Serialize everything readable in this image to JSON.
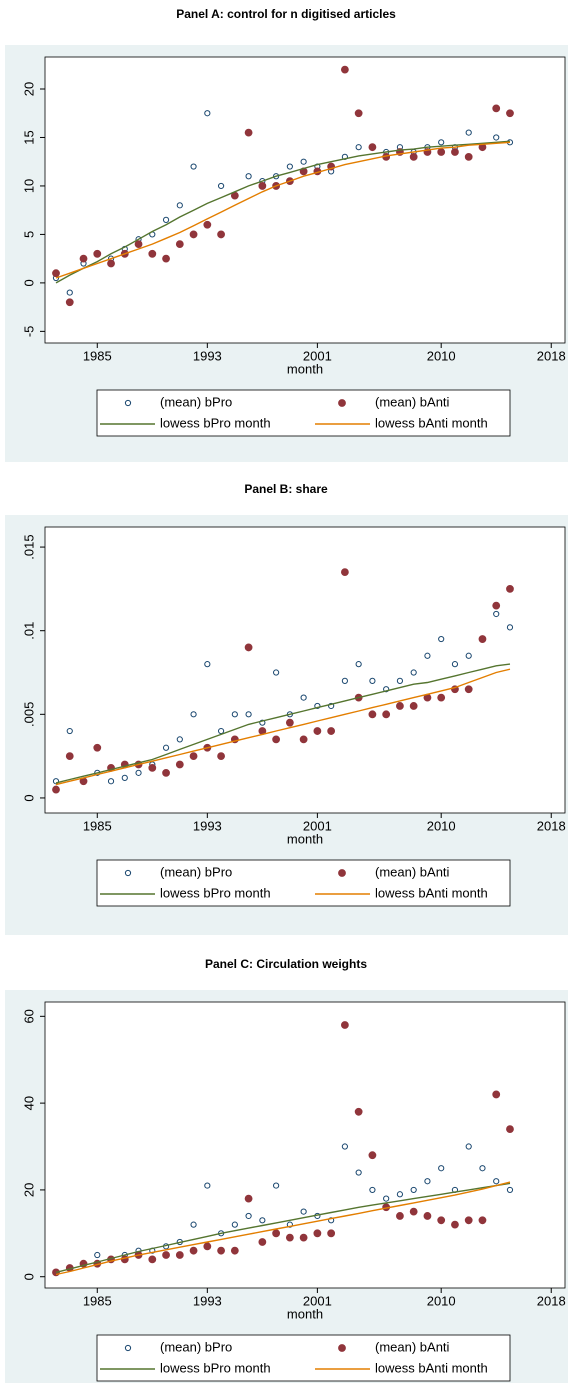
{
  "chart_data": [
    {
      "type": "scatter",
      "title": "Panel A: control for n digitised articles",
      "xlabel": "month",
      "x": [
        1982,
        1983,
        1984,
        1985,
        1986,
        1987,
        1988,
        1989,
        1990,
        1991,
        1992,
        1993,
        1994,
        1995,
        1996,
        1997,
        1998,
        1999,
        2000,
        2001,
        2002,
        2003,
        2004,
        2005,
        2006,
        2007,
        2008,
        2009,
        2010,
        2011,
        2012,
        2013,
        2014,
        2015
      ],
      "xlim": [
        1981.2,
        2019
      ],
      "xticks": [
        1985,
        1993,
        2001,
        2010,
        2018
      ],
      "ylim": [
        -6.2,
        23.3
      ],
      "yticks": [
        -5,
        0,
        5,
        10,
        15,
        20
      ],
      "series": [
        {
          "name": "(mean) bPro",
          "style": "hollow-circle",
          "color": "#1a476f",
          "values": [
            0.5,
            -1,
            2,
            3,
            2.5,
            3.5,
            4.5,
            5,
            6.5,
            8,
            12,
            17.5,
            10,
            9,
            11,
            10.5,
            11,
            12,
            12.5,
            12,
            11.5,
            13,
            14,
            14,
            13.5,
            14,
            13.5,
            14,
            14.5,
            14,
            15.5,
            14,
            15,
            14.5
          ]
        },
        {
          "name": "(mean) bAnti",
          "style": "filled-circle",
          "color": "#90353b",
          "values": [
            1,
            -2,
            2.5,
            3,
            2,
            3,
            4,
            3,
            2.5,
            4,
            5,
            6,
            5,
            9,
            15.5,
            10,
            10,
            10.5,
            11.5,
            11.5,
            12,
            22,
            17.5,
            14,
            13,
            13.5,
            13,
            13.5,
            13.5,
            13.5,
            13,
            14,
            18,
            17.5
          ]
        },
        {
          "name": "lowess bPro month",
          "style": "line",
          "color": "#55752f",
          "values": [
            0,
            0.8,
            1.5,
            2.2,
            3,
            3.7,
            4.5,
            5.3,
            6,
            6.8,
            7.5,
            8.2,
            8.8,
            9.4,
            10,
            10.5,
            11,
            11.4,
            11.8,
            12.2,
            12.5,
            12.8,
            13.1,
            13.3,
            13.5,
            13.7,
            13.8,
            14,
            14.1,
            14.2,
            14.3,
            14.4,
            14.5,
            14.6
          ]
        },
        {
          "name": "lowess bAnti month",
          "style": "line",
          "color": "#e37e00",
          "values": [
            0.5,
            1,
            1.5,
            2,
            2.5,
            3,
            3.5,
            4,
            4.6,
            5.2,
            5.9,
            6.6,
            7.3,
            8,
            8.7,
            9.4,
            10,
            10.5,
            11,
            11.4,
            11.8,
            12.2,
            12.5,
            12.8,
            13.1,
            13.3,
            13.5,
            13.7,
            13.9,
            14,
            14.2,
            14.3,
            14.4,
            14.5
          ]
        }
      ]
    },
    {
      "type": "scatter",
      "title": "Panel B: share",
      "xlabel": "month",
      "x": [
        1982,
        1983,
        1984,
        1985,
        1986,
        1987,
        1988,
        1989,
        1990,
        1991,
        1992,
        1993,
        1994,
        1995,
        1996,
        1997,
        1998,
        1999,
        2000,
        2001,
        2002,
        2003,
        2004,
        2005,
        2006,
        2007,
        2008,
        2009,
        2010,
        2011,
        2012,
        2013,
        2014,
        2015
      ],
      "xlim": [
        1981.2,
        2019
      ],
      "xticks": [
        1985,
        1993,
        2001,
        2010,
        2018
      ],
      "ylim": [
        -0.0009,
        0.0162
      ],
      "yticks": [
        0,
        {
          "value": 0.005,
          "label": ".005"
        },
        {
          "value": 0.01,
          "label": ".01"
        },
        {
          "value": 0.015,
          "label": ".015"
        }
      ],
      "series": [
        {
          "name": "(mean) bPro",
          "style": "hollow-circle",
          "color": "#1a476f",
          "values": [
            0.001,
            0.004,
            0.001,
            0.0015,
            0.001,
            0.0012,
            0.0015,
            0.002,
            0.003,
            0.0035,
            0.005,
            0.008,
            0.004,
            0.005,
            0.005,
            0.0045,
            0.0075,
            0.005,
            0.006,
            0.0055,
            0.0055,
            0.007,
            0.008,
            0.007,
            0.0065,
            0.007,
            0.0075,
            0.0085,
            0.0095,
            0.008,
            0.0085,
            0.0095,
            0.011,
            0.0102
          ]
        },
        {
          "name": "(mean) bAnti",
          "style": "filled-circle",
          "color": "#90353b",
          "values": [
            0.0005,
            0.0025,
            0.001,
            0.003,
            0.0018,
            0.002,
            0.002,
            0.0018,
            0.0015,
            0.002,
            0.0025,
            0.003,
            0.0025,
            0.0035,
            0.009,
            0.004,
            0.0035,
            0.0045,
            0.0035,
            0.004,
            0.004,
            0.0135,
            0.006,
            0.005,
            0.005,
            0.0055,
            0.0055,
            0.006,
            0.006,
            0.0065,
            0.0065,
            0.0095,
            0.0115,
            0.0125
          ]
        },
        {
          "name": "lowess bPro month",
          "style": "line",
          "color": "#55752f",
          "values": [
            0.0009,
            0.0011,
            0.0013,
            0.0015,
            0.0017,
            0.0019,
            0.0021,
            0.0023,
            0.0026,
            0.0029,
            0.0032,
            0.0035,
            0.0038,
            0.0041,
            0.0044,
            0.0046,
            0.0048,
            0.005,
            0.0052,
            0.0054,
            0.0056,
            0.0058,
            0.006,
            0.0062,
            0.0064,
            0.0066,
            0.0068,
            0.0069,
            0.0071,
            0.0073,
            0.0075,
            0.0077,
            0.0079,
            0.008
          ]
        },
        {
          "name": "lowess bAnti month",
          "style": "line",
          "color": "#e37e00",
          "values": [
            0.0008,
            0.001,
            0.0012,
            0.0014,
            0.0016,
            0.0018,
            0.002,
            0.0022,
            0.0024,
            0.0026,
            0.0028,
            0.003,
            0.0032,
            0.0034,
            0.0036,
            0.0038,
            0.004,
            0.0042,
            0.0044,
            0.0046,
            0.0048,
            0.005,
            0.0052,
            0.0054,
            0.0056,
            0.0058,
            0.006,
            0.0062,
            0.0064,
            0.0066,
            0.0069,
            0.0072,
            0.0075,
            0.0077
          ]
        }
      ]
    },
    {
      "type": "scatter",
      "title": "Panel C: Circulation weights",
      "xlabel": "month",
      "x": [
        1982,
        1983,
        1984,
        1985,
        1986,
        1987,
        1988,
        1989,
        1990,
        1991,
        1992,
        1993,
        1994,
        1995,
        1996,
        1997,
        1998,
        1999,
        2000,
        2001,
        2002,
        2003,
        2004,
        2005,
        2006,
        2007,
        2008,
        2009,
        2010,
        2011,
        2012,
        2013,
        2014,
        2015
      ],
      "xlim": [
        1981.2,
        2019
      ],
      "xticks": [
        1985,
        1993,
        2001,
        2010,
        2018
      ],
      "ylim": [
        -2.6,
        63.3
      ],
      "yticks": [
        0,
        20,
        40,
        60
      ],
      "series": [
        {
          "name": "(mean) bPro",
          "style": "hollow-circle",
          "color": "#1a476f",
          "values": [
            1,
            2,
            3,
            5,
            4,
            5,
            6,
            6,
            7,
            8,
            12,
            21,
            10,
            12,
            14,
            13,
            21,
            12,
            15,
            14,
            13,
            30,
            24,
            20,
            18,
            19,
            20,
            22,
            25,
            20,
            30,
            25,
            22,
            20
          ]
        },
        {
          "name": "(mean) bAnti",
          "style": "filled-circle",
          "color": "#90353b",
          "values": [
            1,
            2,
            3,
            3,
            4,
            4,
            5,
            4,
            5,
            5,
            6,
            7,
            6,
            6,
            18,
            8,
            10,
            9,
            9,
            10,
            10,
            58,
            38,
            28,
            16,
            14,
            15,
            14,
            13,
            12,
            13,
            13,
            42,
            34
          ]
        },
        {
          "name": "lowess bPro month",
          "style": "line",
          "color": "#55752f",
          "values": [
            1,
            1.8,
            2.6,
            3.4,
            4.2,
            5,
            5.8,
            6.5,
            7.2,
            7.9,
            8.6,
            9.3,
            10,
            10.6,
            11.2,
            11.8,
            12.4,
            13,
            13.6,
            14.2,
            14.8,
            15.4,
            16,
            16.5,
            17,
            17.5,
            18,
            18.5,
            19,
            19.5,
            20,
            20.5,
            21,
            21.5
          ]
        },
        {
          "name": "lowess bAnti month",
          "style": "line",
          "color": "#e37e00",
          "values": [
            0.5,
            1.2,
            2,
            2.8,
            3.6,
            4.3,
            5,
            5.6,
            6.2,
            6.8,
            7.4,
            8,
            8.6,
            9.2,
            9.8,
            10.4,
            11,
            11.6,
            12.2,
            12.8,
            13.4,
            14,
            14.6,
            15.2,
            15.8,
            16.4,
            17,
            17.6,
            18.2,
            18.8,
            19.5,
            20.2,
            21,
            21.8
          ]
        }
      ]
    }
  ]
}
